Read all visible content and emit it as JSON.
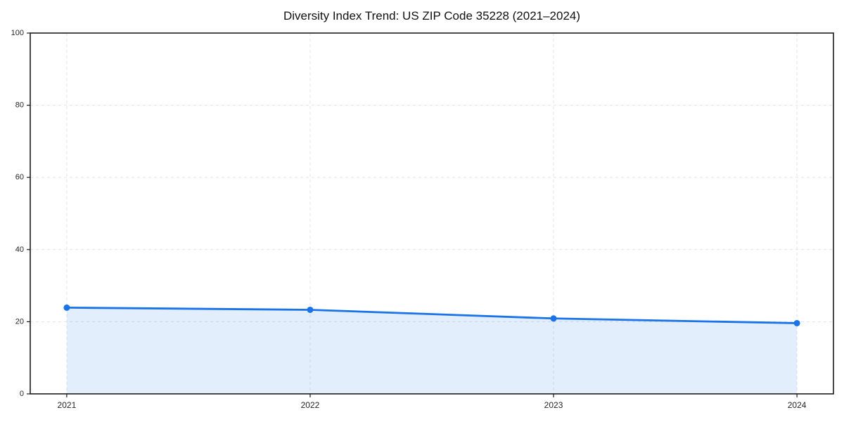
{
  "page": {
    "title": "Diversity Index Trend: US ZIP Code 35228 (2021–2024)"
  },
  "chart_data": {
    "type": "area",
    "title": "Diversity Index Trend: US ZIP Code 35228 (2021–2024)",
    "categories": [
      "2021",
      "2022",
      "2023",
      "2024"
    ],
    "values": [
      23.9,
      23.3,
      20.9,
      19.6
    ],
    "xlabel": "",
    "ylabel": "",
    "ylim": [
      0,
      100
    ],
    "yticks": [
      0,
      20,
      40,
      60,
      80,
      100
    ],
    "grid": true,
    "grid_style": "dashed",
    "legend": false,
    "colors": {
      "line": "#1a73e8",
      "marker": "#1a73e8",
      "fill": "rgba(26,115,232,0.12)",
      "grid": "#e2e2e2",
      "spine": "#1c1c1c",
      "tick": "#1c1c1c",
      "tick_label": "#262626",
      "title": "#111111"
    }
  }
}
